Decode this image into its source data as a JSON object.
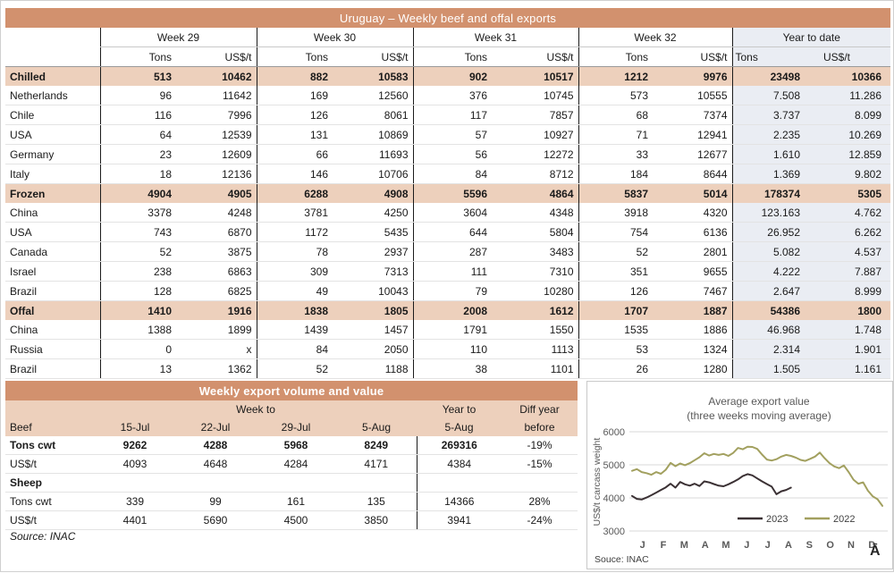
{
  "table1": {
    "title": "Uruguay – Weekly beef and offal exports",
    "week_groups": [
      "Week 29",
      "Week 30",
      "Week 31",
      "Week 32"
    ],
    "ytd_label": "Year to date",
    "tons_label": "Tons",
    "usd_label": "US$/t",
    "rows": [
      {
        "label": "Chilled",
        "section": true,
        "values": [
          "513",
          "10462",
          "882",
          "10583",
          "902",
          "10517",
          "1212",
          "9976",
          "23498",
          "10366"
        ]
      },
      {
        "label": "Netherlands",
        "section": false,
        "values": [
          "96",
          "11642",
          "169",
          "12560",
          "376",
          "10745",
          "573",
          "10555",
          "7.508",
          "11.286"
        ]
      },
      {
        "label": "Chile",
        "section": false,
        "values": [
          "116",
          "7996",
          "126",
          "8061",
          "117",
          "7857",
          "68",
          "7374",
          "3.737",
          "8.099"
        ]
      },
      {
        "label": "USA",
        "section": false,
        "values": [
          "64",
          "12539",
          "131",
          "10869",
          "57",
          "10927",
          "71",
          "12941",
          "2.235",
          "10.269"
        ]
      },
      {
        "label": "Germany",
        "section": false,
        "values": [
          "23",
          "12609",
          "66",
          "11693",
          "56",
          "12272",
          "33",
          "12677",
          "1.610",
          "12.859"
        ]
      },
      {
        "label": "Italy",
        "section": false,
        "values": [
          "18",
          "12136",
          "146",
          "10706",
          "84",
          "8712",
          "184",
          "8644",
          "1.369",
          "9.802"
        ]
      },
      {
        "label": "Frozen",
        "section": true,
        "values": [
          "4904",
          "4905",
          "6288",
          "4908",
          "5596",
          "4864",
          "5837",
          "5014",
          "178374",
          "5305"
        ]
      },
      {
        "label": "China",
        "section": false,
        "values": [
          "3378",
          "4248",
          "3781",
          "4250",
          "3604",
          "4348",
          "3918",
          "4320",
          "123.163",
          "4.762"
        ]
      },
      {
        "label": "USA",
        "section": false,
        "values": [
          "743",
          "6870",
          "1172",
          "5435",
          "644",
          "5804",
          "754",
          "6136",
          "26.952",
          "6.262"
        ]
      },
      {
        "label": "Canada",
        "section": false,
        "values": [
          "52",
          "3875",
          "78",
          "2937",
          "287",
          "3483",
          "52",
          "2801",
          "5.082",
          "4.537"
        ]
      },
      {
        "label": "Israel",
        "section": false,
        "values": [
          "238",
          "6863",
          "309",
          "7313",
          "111",
          "7310",
          "351",
          "9655",
          "4.222",
          "7.887"
        ]
      },
      {
        "label": "Brazil",
        "section": false,
        "values": [
          "128",
          "6825",
          "49",
          "10043",
          "79",
          "10280",
          "126",
          "7467",
          "2.647",
          "8.999"
        ]
      },
      {
        "label": "Offal",
        "section": true,
        "values": [
          "1410",
          "1916",
          "1838",
          "1805",
          "2008",
          "1612",
          "1707",
          "1887",
          "54386",
          "1800"
        ]
      },
      {
        "label": "China",
        "section": false,
        "values": [
          "1388",
          "1899",
          "1439",
          "1457",
          "1791",
          "1550",
          "1535",
          "1886",
          "46.968",
          "1.748"
        ]
      },
      {
        "label": "Russia",
        "section": false,
        "values": [
          "0",
          "x",
          "84",
          "2050",
          "110",
          "1113",
          "53",
          "1324",
          "2.314",
          "1.901"
        ]
      },
      {
        "label": "Brazil",
        "section": false,
        "values": [
          "13",
          "1362",
          "52",
          "1188",
          "38",
          "1101",
          "26",
          "1280",
          "1.505",
          "1.161"
        ]
      }
    ]
  },
  "table2": {
    "title": "Weekly export volume and value",
    "week_to_label": "Week to",
    "year_to_label": "Year to",
    "diff_line1": "Diff year",
    "diff_line2": "before",
    "beef_label": "Beef",
    "dates": [
      "15-Jul",
      "22-Jul",
      "29-Jul",
      "5-Aug"
    ],
    "year_to_date_sub": "5-Aug",
    "rows": [
      {
        "label": "Tons cwt",
        "bold": true,
        "header": false,
        "values": [
          "9262",
          "4288",
          "5968",
          "8249",
          "269316",
          "-19%"
        ]
      },
      {
        "label": "US$/t",
        "bold": false,
        "header": false,
        "values": [
          "4093",
          "4648",
          "4284",
          "4171",
          "4384",
          "-15%"
        ]
      },
      {
        "label": "Sheep",
        "bold": true,
        "header": true,
        "values": [
          "",
          "",
          "",
          "",
          "",
          ""
        ]
      },
      {
        "label": "Tons cwt",
        "bold": false,
        "header": false,
        "values": [
          "339",
          "99",
          "161",
          "135",
          "14366",
          "28%"
        ]
      },
      {
        "label": "US$/t",
        "bold": false,
        "header": false,
        "values": [
          "4401",
          "5690",
          "4500",
          "3850",
          "3941",
          "-24%"
        ]
      }
    ],
    "source": "Source: INAC"
  },
  "chart_data": {
    "type": "line",
    "title": "Average export value",
    "subtitle": "(three weeks moving average)",
    "ylabel": "US$/t carcass weight",
    "yticks": [
      3000,
      4000,
      5000,
      6000
    ],
    "ylim": [
      3000,
      6000
    ],
    "grid": true,
    "legend_position": "bottom-inside",
    "x_unit": "week-of-year",
    "months": [
      "J",
      "F",
      "M",
      "A",
      "M",
      "J",
      "J",
      "A",
      "S",
      "O",
      "N",
      "D"
    ],
    "series": [
      {
        "name": "2023",
        "color": "#3b3134",
        "values": [
          4060,
          3970,
          3950,
          4010,
          4080,
          4160,
          4240,
          4320,
          4430,
          4310,
          4480,
          4410,
          4370,
          4430,
          4360,
          4500,
          4470,
          4420,
          4370,
          4350,
          4410,
          4480,
          4560,
          4660,
          4720,
          4680,
          4590,
          4500,
          4420,
          4340,
          4110,
          4200,
          4240,
          4310
        ]
      },
      {
        "name": "2022",
        "color": "#a2a05f",
        "values": [
          4820,
          4870,
          4780,
          4750,
          4700,
          4780,
          4730,
          4850,
          5060,
          4960,
          5040,
          4990,
          5050,
          5140,
          5230,
          5350,
          5280,
          5330,
          5300,
          5330,
          5270,
          5360,
          5510,
          5470,
          5550,
          5540,
          5480,
          5310,
          5160,
          5130,
          5170,
          5250,
          5300,
          5270,
          5220,
          5150,
          5120,
          5180,
          5250,
          5370,
          5200,
          5050,
          4950,
          4900,
          4980,
          4780,
          4550,
          4430,
          4470,
          4220,
          4050,
          3960,
          3760
        ]
      }
    ],
    "source": "Souce: INAC",
    "corner_glyph": "Ā"
  }
}
